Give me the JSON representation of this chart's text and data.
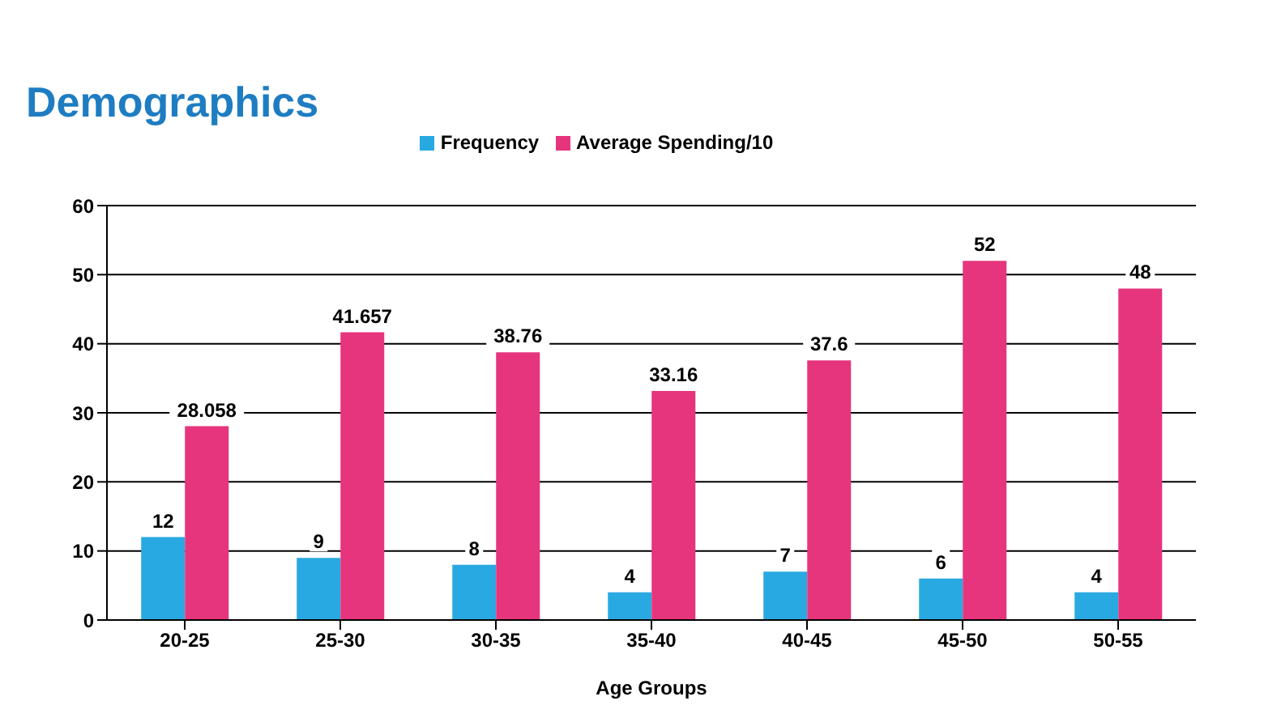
{
  "chart_data": {
    "type": "bar",
    "title": "Demographics",
    "xlabel": "Age Groups",
    "categories": [
      "20-25",
      "25-30",
      "30-35",
      "35-40",
      "40-45",
      "45-50",
      "50-55"
    ],
    "series": [
      {
        "name": "Frequency",
        "color": "#29a9e1",
        "values": [
          12,
          9,
          8,
          4,
          7,
          6,
          4
        ]
      },
      {
        "name": "Average Spending/10",
        "color": "#e6357c",
        "values": [
          28.058,
          41.657,
          38.76,
          33.16,
          37.6,
          52,
          48
        ]
      }
    ],
    "ylim": [
      0,
      60
    ],
    "yticks": [
      0,
      10,
      20,
      30,
      40,
      50,
      60
    ],
    "grid": "y",
    "legend": "top",
    "data_labels": true
  }
}
